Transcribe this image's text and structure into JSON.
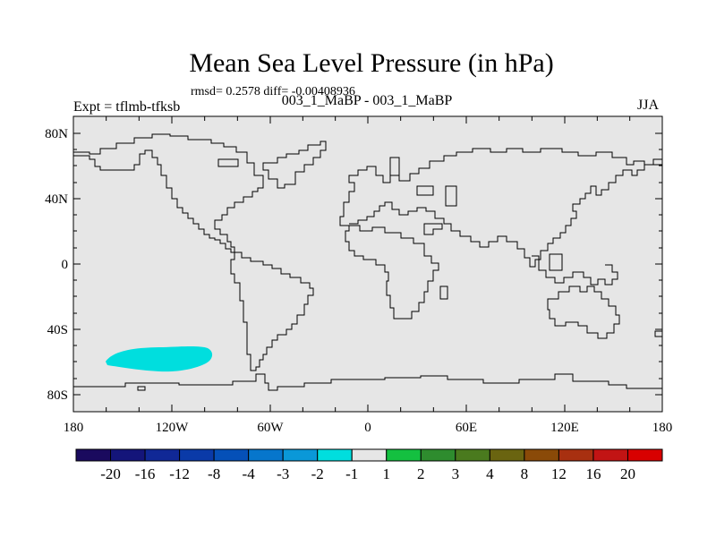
{
  "title": "Mean Sea Level Pressure (in hPa)",
  "stats": "rmsd= 0.2578 diff= -0.00408936",
  "experiment": "Expt = tflmb-tfksb",
  "subtitle": "003_1_MaBP - 003_1_MaBP",
  "season": "JJA",
  "colors": {
    "ocean_land_fill": "#e6e6e6",
    "coastline": "#000000",
    "anomaly_patch": "#00dede"
  },
  "lat_ticks": [
    "80N",
    "40N",
    "0",
    "40S",
    "80S"
  ],
  "lon_ticks": [
    "180",
    "120W",
    "60W",
    "0",
    "60E",
    "120E",
    "180"
  ],
  "colorbar": {
    "labels": [
      "-20",
      "-16",
      "-12",
      "-8",
      "-4",
      "-3",
      "-2",
      "-1",
      "1",
      "2",
      "3",
      "4",
      "8",
      "12",
      "16",
      "20"
    ],
    "colors": [
      "#1a0a5e",
      "#14157a",
      "#102896",
      "#0a3aa8",
      "#0550b8",
      "#0676cc",
      "#0a98d8",
      "#00dede",
      "#e6e6e6",
      "#14c040",
      "#2e8c2e",
      "#4a7a1e",
      "#6a6410",
      "#8a4a08",
      "#a83010",
      "#c21414",
      "#d80000"
    ]
  }
}
